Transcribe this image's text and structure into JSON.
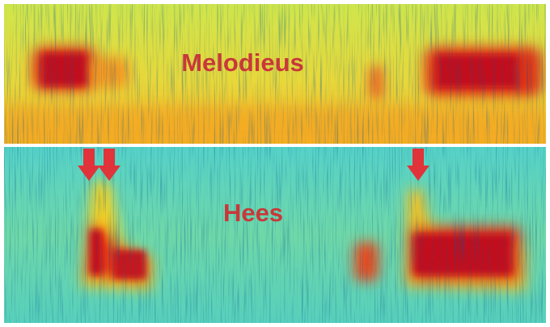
{
  "panels": [
    {
      "label": "Melodieus"
    },
    {
      "label": "Hees"
    }
  ]
}
